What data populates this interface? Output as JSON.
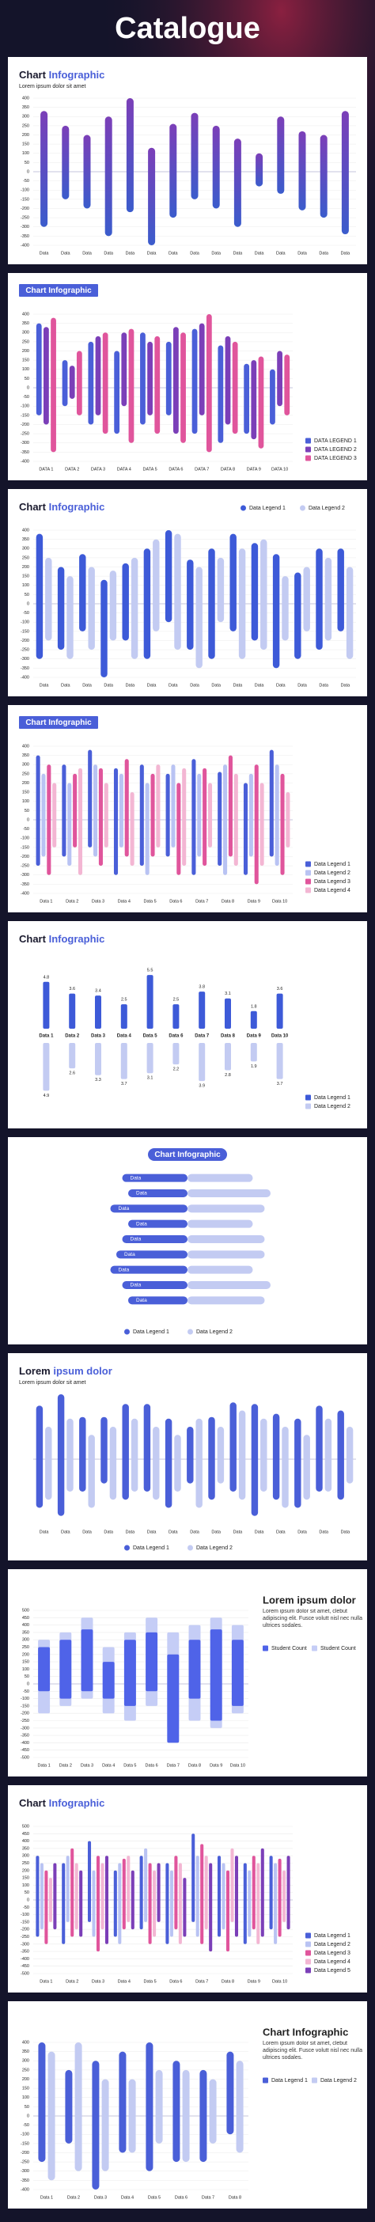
{
  "title": "Catalogue",
  "chart_data": [
    {
      "type": "bar",
      "title": "Chart",
      "title_accent": "Infographic",
      "subtitle": "Lorem ipsum dolor sit amet",
      "categories": [
        "Data",
        "Data",
        "Data",
        "Data",
        "Data",
        "Data",
        "Data",
        "Data",
        "Data",
        "Data",
        "Data",
        "Data",
        "Data",
        "Data",
        "Data"
      ],
      "series": [
        {
          "color": "#7b3fb8",
          "color2": "#3b5ccc",
          "values": [
            330,
            250,
            200,
            300,
            400,
            130,
            260,
            320,
            250,
            180,
            100,
            300,
            220,
            200,
            330
          ],
          "lows": [
            -300,
            -150,
            -200,
            -350,
            -220,
            -400,
            -250,
            -150,
            -200,
            -300,
            -80,
            -120,
            -210,
            -250,
            -340
          ]
        }
      ],
      "ylim": [
        -400,
        400
      ],
      "yticks": [
        400,
        350,
        300,
        250,
        200,
        150,
        100,
        50,
        0,
        -50,
        -100,
        -150,
        -200,
        -250,
        -300,
        -350,
        -400
      ],
      "grid": true
    },
    {
      "type": "bar",
      "title": "Chart Infographic",
      "title_box": true,
      "legend": "bottom-right",
      "categories": [
        "DATA 1",
        "DATA 2",
        "DATA 3",
        "DATA 4",
        "DATA 5",
        "DATA 6",
        "DATA 7",
        "DATA 8",
        "DATA 9",
        "DATA 10"
      ],
      "series": [
        {
          "name": "DATA LEGEND 1",
          "color": "#4a5fd8",
          "values": [
            350,
            150,
            250,
            200,
            300,
            250,
            320,
            230,
            130,
            100
          ],
          "lows": [
            -150,
            -100,
            -200,
            -250,
            -200,
            -150,
            -250,
            -300,
            -250,
            -200
          ]
        },
        {
          "name": "DATA LEGEND 2",
          "color": "#7b3fb8",
          "values": [
            330,
            120,
            280,
            300,
            250,
            330,
            350,
            280,
            150,
            200
          ],
          "lows": [
            -200,
            -60,
            -150,
            -100,
            -150,
            -250,
            -150,
            -200,
            -280,
            -100
          ]
        },
        {
          "name": "DATA LEGEND 3",
          "color": "#e0559c",
          "values": [
            380,
            200,
            300,
            320,
            280,
            300,
            400,
            250,
            170,
            180
          ],
          "lows": [
            -350,
            -150,
            -250,
            -300,
            -250,
            -300,
            -350,
            -250,
            -330,
            -150
          ]
        }
      ],
      "ylim": [
        -400,
        400
      ],
      "yticks": [
        400,
        350,
        300,
        250,
        200,
        150,
        100,
        50,
        0,
        -50,
        -100,
        -150,
        -200,
        -250,
        -300,
        -350,
        -400
      ],
      "grid": true
    },
    {
      "type": "bar",
      "title": "Chart",
      "title_accent": "Infographic",
      "legend": "top-right",
      "categories": [
        "Data",
        "Data",
        "Data",
        "Data",
        "Data",
        "Data",
        "Data",
        "Data",
        "Data",
        "Data",
        "Data",
        "Data",
        "Data",
        "Data",
        "Data"
      ],
      "series": [
        {
          "name": "Data Legend 1",
          "color": "#3d5ad8",
          "values": [
            380,
            200,
            270,
            130,
            220,
            300,
            400,
            240,
            300,
            380,
            330,
            270,
            170,
            300,
            300
          ],
          "lows": [
            -300,
            -250,
            -150,
            -400,
            -200,
            -300,
            -100,
            -250,
            -300,
            -150,
            -200,
            -350,
            -300,
            -250,
            -150
          ]
        },
        {
          "name": "Data Legend 2",
          "color": "#c3cbf2",
          "values": [
            250,
            150,
            200,
            180,
            250,
            350,
            380,
            200,
            250,
            300,
            350,
            150,
            200,
            250,
            200
          ],
          "lows": [
            -200,
            -300,
            -250,
            -200,
            -300,
            -150,
            -250,
            -350,
            -100,
            -300,
            -250,
            -200,
            -150,
            -200,
            -300
          ]
        }
      ],
      "ylim": [
        -400,
        400
      ],
      "yticks": [
        400,
        350,
        300,
        250,
        200,
        150,
        100,
        50,
        0,
        -50,
        -100,
        -150,
        -200,
        -250,
        -300,
        -350,
        -400
      ],
      "grid": true
    },
    {
      "type": "bar",
      "title": "Chart Infographic",
      "title_box": true,
      "legend": "bottom-right",
      "categories": [
        "Data 1",
        "Data 2",
        "Data 3",
        "Data 4",
        "Data 5",
        "Data 6",
        "Data 7",
        "Data 8",
        "Data 9",
        "Data 10"
      ],
      "series": [
        {
          "name": "Data Legend 1",
          "color": "#4a5fd8",
          "values": [
            350,
            300,
            380,
            280,
            300,
            250,
            330,
            260,
            200,
            380
          ],
          "lows": [
            -250,
            -200,
            -150,
            -300,
            -250,
            -200,
            -300,
            -250,
            -300,
            -200
          ]
        },
        {
          "name": "Data Legend 2",
          "color": "#b9c3f3",
          "values": [
            250,
            200,
            300,
            250,
            200,
            300,
            250,
            300,
            250,
            300
          ],
          "lows": [
            -200,
            -250,
            -200,
            -150,
            -300,
            -150,
            -200,
            -300,
            -200,
            -250
          ]
        },
        {
          "name": "Data Legend 3",
          "color": "#e0559c",
          "values": [
            300,
            250,
            280,
            330,
            250,
            200,
            280,
            350,
            300,
            250
          ],
          "lows": [
            -300,
            -150,
            -250,
            -200,
            -200,
            -300,
            -250,
            -200,
            -350,
            -300
          ]
        },
        {
          "name": "Data Legend 4",
          "color": "#f3b6d3",
          "values": [
            200,
            280,
            200,
            150,
            300,
            280,
            200,
            250,
            200,
            150
          ],
          "lows": [
            -150,
            -300,
            -150,
            -250,
            -150,
            -250,
            -150,
            -250,
            -250,
            -150
          ]
        }
      ],
      "ylim": [
        -400,
        400
      ],
      "yticks": [
        400,
        350,
        300,
        250,
        200,
        150,
        100,
        50,
        0,
        -50,
        -100,
        -150,
        -200,
        -250,
        -300,
        -350,
        -400
      ],
      "grid": true
    },
    {
      "type": "dual",
      "title": "Chart",
      "title_accent": "Infographic",
      "legend": "bottom-right",
      "categories": [
        "Data 1",
        "Data 2",
        "Data 3",
        "Data 4",
        "Data 5",
        "Data 6",
        "Data 7",
        "Data 8",
        "Data 9",
        "Data 10"
      ],
      "series": [
        {
          "name": "Data Legend 1",
          "color": "#3d5ad8",
          "direction": "up",
          "values": [
            4.8,
            3.6,
            3.4,
            2.5,
            5.5,
            2.5,
            3.8,
            3.1,
            1.8,
            3.6
          ]
        },
        {
          "name": "Data Legend 2",
          "color": "#c3cbf2",
          "direction": "down",
          "values": [
            4.9,
            2.6,
            3.3,
            3.7,
            3.1,
            2.2,
            3.9,
            2.8,
            1.9,
            3.7
          ]
        }
      ],
      "ylim": [
        0,
        6
      ]
    },
    {
      "type": "hbar",
      "title": "Chart Infographic",
      "title_box": true,
      "legend": "bottom",
      "categories": [
        "Data",
        "Data",
        "Data",
        "Data",
        "Data",
        "Data",
        "Data",
        "Data",
        "Data"
      ],
      "series": [
        {
          "name": "Data Legend 1",
          "color": "#4a5fd8",
          "values": [
            55,
            50,
            65,
            50,
            55,
            60,
            65,
            55,
            50
          ]
        },
        {
          "name": "Data Legend 2",
          "color": "#c3cbf2",
          "values": [
            55,
            70,
            65,
            55,
            65,
            65,
            55,
            70,
            65
          ]
        }
      ],
      "xlim": [
        0,
        100
      ]
    },
    {
      "type": "bar",
      "title": "Lorem",
      "title_accent": "ipsum dolor",
      "subtitle": "Lorem ipsum dolor sit amet",
      "legend": "bottom",
      "categories": [
        "Data",
        "Data",
        "Data",
        "Data",
        "Data",
        "Data",
        "Data",
        "Data",
        "Data",
        "Data",
        "Data",
        "Data",
        "Data",
        "Data",
        "Data"
      ],
      "series": [
        {
          "name": "Data Legend 1",
          "color": "#4a5fd8",
          "values": [
            330,
            400,
            260,
            260,
            340,
            340,
            250,
            200,
            260,
            350,
            340,
            280,
            250,
            330,
            300
          ],
          "lows": [
            -300,
            -350,
            -200,
            -150,
            -250,
            -200,
            -300,
            -150,
            -250,
            -200,
            -350,
            -250,
            -300,
            -200,
            -250
          ]
        },
        {
          "name": "Data Legend 2",
          "color": "#c3cbf2",
          "values": [
            200,
            250,
            150,
            200,
            250,
            200,
            150,
            250,
            200,
            300,
            250,
            200,
            150,
            250,
            200
          ],
          "lows": [
            -250,
            -200,
            -300,
            -250,
            -200,
            -250,
            -200,
            -300,
            -150,
            -250,
            -200,
            -300,
            -250,
            -200,
            -150
          ]
        }
      ],
      "ylim": [
        -400,
        400
      ]
    },
    {
      "type": "bar",
      "title": "Lorem ipsum dolor",
      "title_position": "right",
      "overlap": true,
      "legend": "right",
      "description": "Lorem ipsum dolor sit amet, clebut adipiscing elit. Fusce volutt nisl nec nulla ultrices sodales.",
      "categories": [
        "Data 1",
        "Data 2",
        "Data 3",
        "Data 4",
        "Data 5",
        "Data 6",
        "Data 7",
        "Data 8",
        "Data 9",
        "Data 10"
      ],
      "series": [
        {
          "name": "Student Count",
          "color": "#4f63e8",
          "values": [
            250,
            300,
            370,
            150,
            300,
            350,
            200,
            300,
            370,
            300
          ],
          "lows": [
            -50,
            -100,
            -50,
            -100,
            -150,
            -50,
            -400,
            -100,
            -250,
            -150
          ]
        },
        {
          "name": "Student Count",
          "color": "#c5cdf6",
          "values": [
            300,
            350,
            450,
            250,
            350,
            450,
            350,
            400,
            450,
            400
          ],
          "lows": [
            -200,
            -150,
            -100,
            -200,
            -250,
            -150,
            -300,
            -250,
            -300,
            -200
          ]
        }
      ],
      "ylim": [
        -500,
        500
      ],
      "yticks": [
        500,
        450,
        400,
        350,
        300,
        250,
        200,
        150,
        100,
        50,
        0,
        -50,
        -100,
        -150,
        -200,
        -250,
        -300,
        -350,
        -400,
        -450,
        -500
      ],
      "grid": true
    },
    {
      "type": "bar",
      "title": "Chart",
      "title_accent": "Infographic",
      "legend": "bottom-right",
      "categories": [
        "Data 1",
        "Data 2",
        "Data 3",
        "Data 4",
        "Data 5",
        "Data 6",
        "Data 7",
        "Data 8",
        "Data 9",
        "Data 10"
      ],
      "series": [
        {
          "name": "Data Legend 1",
          "color": "#4a5fd8",
          "values": [
            300,
            250,
            400,
            200,
            300,
            250,
            450,
            300,
            250,
            300
          ],
          "lows": [
            -250,
            -300,
            -150,
            -250,
            -200,
            -300,
            -150,
            -250,
            -300,
            -200
          ]
        },
        {
          "name": "Data Legend 2",
          "color": "#b9c3f3",
          "values": [
            250,
            300,
            200,
            250,
            350,
            200,
            300,
            250,
            200,
            250
          ],
          "lows": [
            -200,
            -150,
            -250,
            -300,
            -150,
            -250,
            -250,
            -200,
            -250,
            -300
          ]
        },
        {
          "name": "Data Legend 3",
          "color": "#e0559c",
          "values": [
            200,
            350,
            300,
            280,
            250,
            300,
            380,
            200,
            300,
            280
          ],
          "lows": [
            -300,
            -250,
            -350,
            -200,
            -300,
            -200,
            -300,
            -350,
            -200,
            -250
          ]
        },
        {
          "name": "Data Legend 4",
          "color": "#f3b6d3",
          "values": [
            150,
            250,
            250,
            300,
            200,
            250,
            300,
            350,
            250,
            200
          ],
          "lows": [
            -150,
            -200,
            -200,
            -150,
            -250,
            -300,
            -200,
            -150,
            -300,
            -150
          ]
        },
        {
          "name": "Data Legend 5",
          "color": "#7b3fb8",
          "values": [
            250,
            200,
            300,
            200,
            250,
            150,
            250,
            300,
            350,
            300
          ],
          "lows": [
            -200,
            -250,
            -300,
            -200,
            -150,
            -250,
            -350,
            -250,
            -250,
            -200
          ]
        }
      ],
      "ylim": [
        -500,
        500
      ],
      "yticks": [
        500,
        450,
        400,
        350,
        300,
        250,
        200,
        150,
        100,
        50,
        0,
        -50,
        -100,
        -150,
        -200,
        -250,
        -300,
        -350,
        -400,
        -450,
        -500
      ],
      "grid": true
    },
    {
      "type": "bar",
      "title": "Chart Infographic",
      "title_position": "right",
      "legend": "right",
      "description": "Lorem ipsum dolor sit amet, clebut adipiscing elit. Fusce volutt nisl nec nulla ultrices sodales.",
      "categories": [
        "Data 1",
        "Data 2",
        "Data 3",
        "Data 4",
        "Data 5",
        "Data 6",
        "Data 7",
        "Data 8"
      ],
      "series": [
        {
          "name": "Data Legend 1",
          "color": "#4a5fd8",
          "values": [
            400,
            250,
            300,
            350,
            400,
            300,
            250,
            350
          ],
          "lows": [
            -250,
            -150,
            -400,
            -200,
            -300,
            -250,
            -250,
            -100
          ]
        },
        {
          "name": "Data Legend 2",
          "color": "#c3cbf2",
          "values": [
            350,
            400,
            200,
            200,
            250,
            250,
            200,
            300
          ],
          "lows": [
            -350,
            -300,
            -300,
            -200,
            -150,
            -250,
            -150,
            -200
          ]
        }
      ],
      "ylim": [
        -400,
        400
      ],
      "yticks": [
        400,
        350,
        300,
        250,
        200,
        150,
        100,
        50,
        0,
        -50,
        -100,
        -150,
        -200,
        -250,
        -300,
        -350,
        -400
      ],
      "grid": true
    }
  ]
}
